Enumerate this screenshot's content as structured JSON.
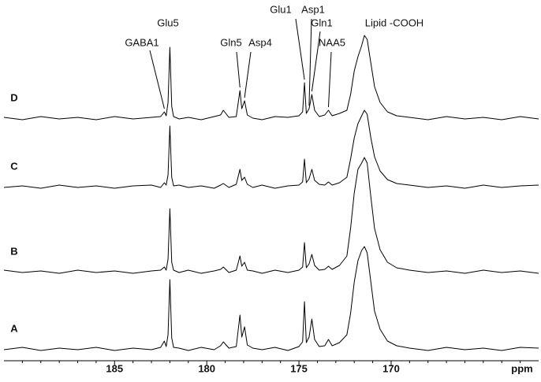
{
  "chart_data": {
    "type": "line",
    "xlabel": "ppm",
    "xlim": [
      191,
      162
    ],
    "xticks": [
      185,
      180,
      175,
      170
    ],
    "xminorticks": [
      190,
      189,
      188,
      187,
      186,
      184,
      183,
      182,
      181,
      179,
      178,
      177,
      176,
      174,
      173,
      172,
      171,
      169,
      168,
      167,
      166,
      165,
      164,
      163
    ],
    "x": [
      191,
      190,
      189,
      188,
      187,
      186,
      185,
      184,
      183,
      182.5,
      182.3,
      182.2,
      182.1,
      182.0,
      181.9,
      181.8,
      181.5,
      181,
      180.3,
      179.6,
      179.25,
      179.1,
      178.8,
      178.4,
      178.2,
      178.1,
      177.95,
      177.8,
      177.5,
      177,
      176.3,
      175.6,
      175.0,
      174.8,
      174.7,
      174.6,
      174.45,
      174.3,
      174.15,
      173.9,
      173.6,
      173.4,
      173.2,
      172.8,
      172.4,
      172.2,
      172.0,
      171.8,
      171.6,
      171.45,
      171.3,
      171.1,
      170.9,
      170.6,
      170.2,
      169.7,
      169,
      168,
      167,
      166,
      165,
      164,
      163,
      162
    ],
    "series": [
      {
        "name": "D",
        "color": "#000000",
        "values": [
          1,
          -2,
          2,
          -1,
          1,
          -2,
          2,
          -1,
          1,
          2,
          8,
          3,
          20,
          90,
          15,
          2,
          -1,
          1,
          -2,
          2,
          4,
          10,
          1,
          2,
          35,
          12,
          22,
          4,
          0,
          -2,
          2,
          1,
          3,
          8,
          45,
          6,
          12,
          30,
          10,
          2,
          4,
          10,
          3,
          6,
          10,
          30,
          60,
          78,
          92,
          105,
          100,
          70,
          40,
          20,
          8,
          3,
          1,
          -2,
          2,
          -1,
          1,
          -2,
          2,
          -1
        ]
      },
      {
        "name": "C",
        "color": "#000000",
        "values": [
          -1,
          1,
          -2,
          2,
          -1,
          1,
          -2,
          1,
          2,
          -1,
          5,
          2,
          15,
          77,
          12,
          1,
          2,
          -1,
          1,
          -2,
          2,
          4,
          -1,
          3,
          22,
          8,
          12,
          3,
          -1,
          2,
          -2,
          1,
          2,
          6,
          35,
          5,
          10,
          22,
          8,
          3,
          2,
          6,
          2,
          5,
          12,
          35,
          62,
          80,
          90,
          97,
          92,
          62,
          38,
          20,
          9,
          4,
          2,
          -1,
          1,
          -2,
          2,
          -1,
          1,
          2
        ]
      },
      {
        "name": "B",
        "color": "#000000",
        "values": [
          2,
          -1,
          1,
          -2,
          2,
          -1,
          1,
          -2,
          1,
          2,
          6,
          2,
          16,
          80,
          12,
          2,
          -1,
          2,
          -2,
          1,
          3,
          6,
          -1,
          2,
          20,
          7,
          12,
          2,
          1,
          -2,
          2,
          -1,
          2,
          6,
          37,
          5,
          10,
          22,
          8,
          2,
          3,
          7,
          3,
          8,
          20,
          55,
          100,
          130,
          138,
          145,
          138,
          95,
          55,
          28,
          12,
          5,
          2,
          -1,
          1,
          -2,
          2,
          -1,
          1,
          -2
        ]
      },
      {
        "name": "A",
        "color": "#000000",
        "values": [
          -1,
          2,
          -2,
          1,
          -1,
          2,
          -2,
          1,
          -1,
          2,
          10,
          3,
          18,
          88,
          14,
          2,
          1,
          -2,
          2,
          -1,
          4,
          9,
          1,
          3,
          43,
          15,
          28,
          5,
          1,
          -1,
          2,
          -2,
          3,
          9,
          60,
          8,
          15,
          38,
          12,
          3,
          4,
          12,
          4,
          8,
          18,
          45,
          85,
          112,
          125,
          130,
          122,
          85,
          48,
          25,
          10,
          4,
          1,
          -2,
          2,
          -1,
          1,
          -2,
          2,
          1
        ]
      }
    ],
    "annotations": [
      {
        "text": "GABA1",
        "x": 182.3
      },
      {
        "text": "Glu5"
      },
      {
        "text": "Gln5",
        "x": 178.2
      },
      {
        "text": "Asp4",
        "x": 177.95
      },
      {
        "text": "Glu1",
        "x": 174.7
      },
      {
        "text": "Asp1",
        "x": 174.45
      },
      {
        "text": "Gln1",
        "x": 174.3
      },
      {
        "text": "NAA5",
        "x": 173.4
      },
      {
        "text": "Lipid -COOH"
      }
    ]
  }
}
